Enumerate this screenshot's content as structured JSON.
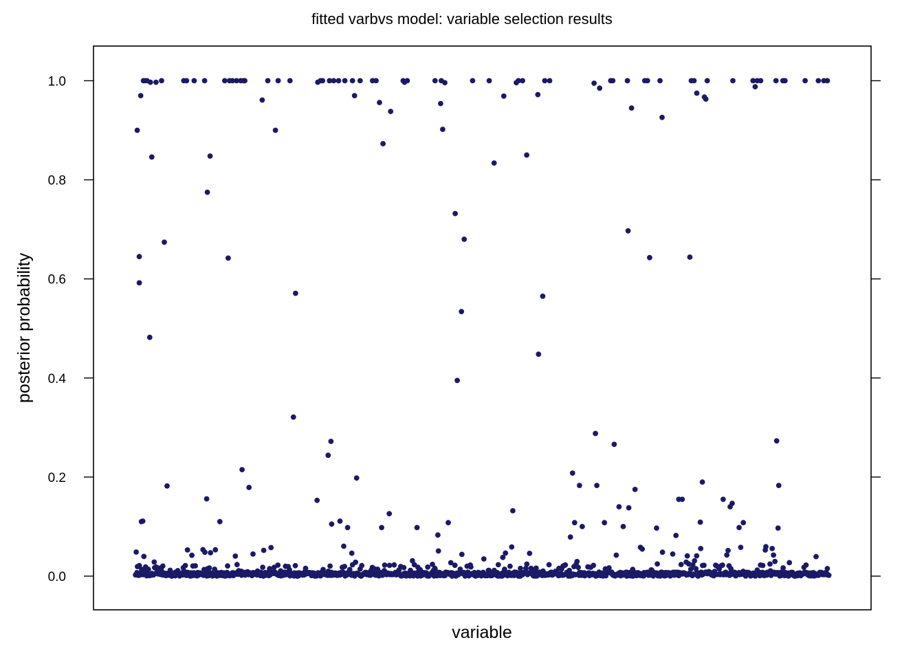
{
  "chart_data": {
    "type": "scatter",
    "title": "fitted varbvs model: variable selection results",
    "xlabel": "variable",
    "ylabel": "posterior probability",
    "xlim": [
      -60,
      1060
    ],
    "ylim": [
      -0.068,
      1.07
    ],
    "yticks": [
      "0.0",
      "0.2",
      "0.4",
      "0.6",
      "0.8",
      "1.0"
    ],
    "x_ticks_shown": false,
    "grid": false,
    "legend": "none",
    "point_color": "#1a1a66",
    "points": [
      [
        3,
        0.9
      ],
      [
        6,
        0.645
      ],
      [
        6,
        0.592
      ],
      [
        8,
        0.97
      ],
      [
        9,
        0.11
      ],
      [
        11,
        0.111
      ],
      [
        12,
        1.0
      ],
      [
        14,
        1.0
      ],
      [
        17,
        1.0
      ],
      [
        21,
        0.482
      ],
      [
        22,
        0.997
      ],
      [
        24,
        0.846
      ],
      [
        30,
        0.997
      ],
      [
        38,
        1.0
      ],
      [
        42,
        0.674
      ],
      [
        46,
        0.182
      ],
      [
        70,
        1.0
      ],
      [
        74,
        1.0
      ],
      [
        85,
        1.0
      ],
      [
        100,
        1.0
      ],
      [
        103,
        0.156
      ],
      [
        104,
        0.775
      ],
      [
        108,
        0.848
      ],
      [
        122,
        0.11
      ],
      [
        129,
        1.0
      ],
      [
        134,
        0.642
      ],
      [
        136,
        1.0
      ],
      [
        140,
        1.0
      ],
      [
        146,
        1.0
      ],
      [
        152,
        1.0
      ],
      [
        154,
        0.215
      ],
      [
        156,
        1.0
      ],
      [
        158,
        1.0
      ],
      [
        164,
        0.179
      ],
      [
        183,
        0.961
      ],
      [
        191,
        1.0
      ],
      [
        202,
        0.9
      ],
      [
        206,
        1.0
      ],
      [
        223,
        1.0
      ],
      [
        228,
        0.321
      ],
      [
        231,
        0.571
      ],
      [
        262,
        0.153
      ],
      [
        263,
        0.997
      ],
      [
        267,
        1.0
      ],
      [
        270,
        1.0
      ],
      [
        278,
        0.244
      ],
      [
        280,
        1.0
      ],
      [
        282,
        0.272
      ],
      [
        283,
        0.105
      ],
      [
        286,
        1.0
      ],
      [
        293,
        1.0
      ],
      [
        295,
        0.111
      ],
      [
        302,
        1.0
      ],
      [
        306,
        0.098
      ],
      [
        313,
        1.0
      ],
      [
        316,
        0.97
      ],
      [
        319,
        0.198
      ],
      [
        324,
        1.0
      ],
      [
        342,
        1.0
      ],
      [
        347,
        1.0
      ],
      [
        352,
        0.956
      ],
      [
        355,
        0.098
      ],
      [
        357,
        0.873
      ],
      [
        366,
        0.126
      ],
      [
        368,
        0.938
      ],
      [
        386,
        1.0
      ],
      [
        388,
        0.997
      ],
      [
        392,
        1.0
      ],
      [
        406,
        0.098
      ],
      [
        432,
        1.0
      ],
      [
        436,
        0.083
      ],
      [
        440,
        0.954
      ],
      [
        441,
        1.0
      ],
      [
        443,
        0.902
      ],
      [
        446,
        0.996
      ],
      [
        451,
        0.108
      ],
      [
        461,
        0.732
      ],
      [
        464,
        0.395
      ],
      [
        470,
        0.534
      ],
      [
        474,
        0.68
      ],
      [
        486,
        1.0
      ],
      [
        510,
        1.0
      ],
      [
        517,
        0.834
      ],
      [
        531,
        0.969
      ],
      [
        544,
        0.132
      ],
      [
        549,
        0.996
      ],
      [
        552,
        1.0
      ],
      [
        558,
        1.0
      ],
      [
        564,
        0.85
      ],
      [
        580,
        0.972
      ],
      [
        581,
        0.448
      ],
      [
        587,
        0.565
      ],
      [
        590,
        1.0
      ],
      [
        597,
        1.0
      ],
      [
        627,
        0.079
      ],
      [
        630,
        0.208
      ],
      [
        633,
        0.108
      ],
      [
        640,
        0.183
      ],
      [
        644,
        0.1
      ],
      [
        661,
        0.995
      ],
      [
        663,
        0.288
      ],
      [
        665,
        0.183
      ],
      [
        669,
        0.985
      ],
      [
        676,
        0.108
      ],
      [
        685,
        1.0
      ],
      [
        688,
        1.0
      ],
      [
        690,
        0.266
      ],
      [
        697,
        0.14
      ],
      [
        703,
        0.1
      ],
      [
        709,
        1.0
      ],
      [
        710,
        0.697
      ],
      [
        711,
        0.138
      ],
      [
        715,
        0.945
      ],
      [
        720,
        0.175
      ],
      [
        734,
        1.0
      ],
      [
        738,
        1.0
      ],
      [
        741,
        0.643
      ],
      [
        751,
        0.097
      ],
      [
        756,
        1.0
      ],
      [
        759,
        0.926
      ],
      [
        779,
        0.082
      ],
      [
        783,
        0.155
      ],
      [
        788,
        0.155
      ],
      [
        799,
        0.644
      ],
      [
        801,
        1.0
      ],
      [
        805,
        1.0
      ],
      [
        809,
        0.975
      ],
      [
        814,
        0.109
      ],
      [
        817,
        0.19
      ],
      [
        820,
        0.967
      ],
      [
        822,
        0.963
      ],
      [
        824,
        1.0
      ],
      [
        847,
        0.155
      ],
      [
        857,
        0.14
      ],
      [
        860,
        0.147
      ],
      [
        861,
        1.0
      ],
      [
        870,
        0.098
      ],
      [
        876,
        0.108
      ],
      [
        890,
        1.0
      ],
      [
        893,
        0.988
      ],
      [
        896,
        1.0
      ],
      [
        901,
        1.0
      ],
      [
        923,
        1.0
      ],
      [
        924,
        0.273
      ],
      [
        926,
        0.097
      ],
      [
        927,
        0.183
      ],
      [
        933,
        1.0
      ],
      [
        936,
        1.0
      ],
      [
        965,
        1.0
      ],
      [
        984,
        1.0
      ],
      [
        992,
        1.0
      ],
      [
        997,
        1.0
      ]
    ],
    "low_points_note": "about 1000 variables in total; most lie between 0.0 and 0.06",
    "n_variables": 1000
  }
}
